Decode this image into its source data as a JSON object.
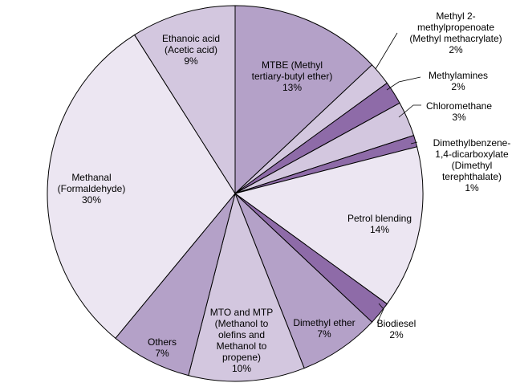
{
  "chart_data": {
    "type": "pie",
    "title": "",
    "slices": [
      {
        "label": "MTBE (Methyl tertiary-butyl ether)",
        "lines": [
          "MTBE (Methyl",
          "tertiary-butyl ether)",
          "13%"
        ],
        "value": 13,
        "color": "#b4a1c8"
      },
      {
        "label": "Methyl 2-methylpropenoate (Methyl methacrylate)",
        "lines": [
          "Methyl 2-",
          "methylpropenoate",
          "(Methyl methacrylate)",
          "2%"
        ],
        "value": 2,
        "color": "#d3c7df"
      },
      {
        "label": "Methylamines",
        "lines": [
          "Methylamines",
          "2%"
        ],
        "value": 2,
        "color": "#8e6ba8"
      },
      {
        "label": "Chloromethane",
        "lines": [
          "Chloromethane",
          "3%"
        ],
        "value": 3,
        "color": "#d3c7df"
      },
      {
        "label": "Dimethylbenzene-1,4-dicarboxylate (Dimethyl terephthalate)",
        "lines": [
          "Dimethylbenzene-",
          "1,4-dicarboxylate",
          "(Dimethyl",
          "terephthalate)",
          "1%"
        ],
        "value": 1,
        "color": "#8e6ba8"
      },
      {
        "label": "Petrol blending",
        "lines": [
          "Petrol blending",
          "14%"
        ],
        "value": 14,
        "color": "#ece6f2"
      },
      {
        "label": "Biodiesel",
        "lines": [
          "Biodiesel",
          "2%"
        ],
        "value": 2,
        "color": "#8e6ba8"
      },
      {
        "label": "Dimethyl ether",
        "lines": [
          "Dimethyl ether",
          "7%"
        ],
        "value": 7,
        "color": "#b4a1c8"
      },
      {
        "label": "MTO and MTP (Methanol to olefins and Methanol to propene)",
        "lines": [
          "MTO and MTP",
          "(Methanol to",
          "olefins and",
          "Methanol to",
          "propene)",
          "10%"
        ],
        "value": 10,
        "color": "#d3c7df"
      },
      {
        "label": "Others",
        "lines": [
          "Others",
          "7%"
        ],
        "value": 7,
        "color": "#b4a1c8"
      },
      {
        "label": "Methanal (Formaldehyde)",
        "lines": [
          "Methanal",
          "(Formaldehyde)",
          "30%"
        ],
        "value": 30,
        "color": "#ece6f2"
      },
      {
        "label": "Ethanoic acid (Acetic acid)",
        "lines": [
          "Ethanoic acid",
          "(Acetic acid)",
          "9%"
        ],
        "value": 9,
        "color": "#d3c7df"
      }
    ]
  }
}
